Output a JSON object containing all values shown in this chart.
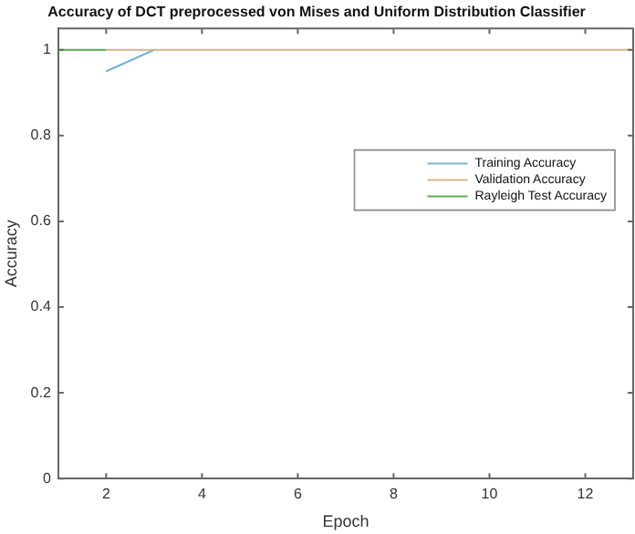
{
  "chart_data": {
    "type": "line",
    "title": "Accuracy of DCT preprocessed von Mises and Uniform Distribution Classifier",
    "xlabel": "Epoch",
    "ylabel": "Accuracy",
    "xlim": [
      1,
      13
    ],
    "xticks": [
      2,
      4,
      6,
      8,
      10,
      12
    ],
    "ylim": [
      0,
      1.05
    ],
    "yticks": [
      0,
      0.2,
      0.4,
      0.6,
      0.8,
      1
    ],
    "grid": false,
    "legend": "right",
    "marker": "none",
    "line_style": "solid",
    "series": [
      {
        "name": "Training Accuracy",
        "color": "#74b3d8",
        "x": [
          2,
          3
        ],
        "values": [
          0.95,
          1
        ]
      },
      {
        "name": "Validation Accuracy",
        "color": "#d2b48c",
        "x": [
          2,
          3,
          4,
          5,
          6,
          7,
          8,
          9,
          10,
          11,
          12,
          13
        ],
        "values": [
          1,
          1,
          1,
          1,
          1,
          1,
          1,
          1,
          1,
          1,
          1,
          1
        ]
      },
      {
        "name": "Rayleigh Test Accuracy",
        "color": "#5aa85a",
        "x": [
          1,
          2
        ],
        "values": [
          1,
          1
        ]
      }
    ]
  }
}
